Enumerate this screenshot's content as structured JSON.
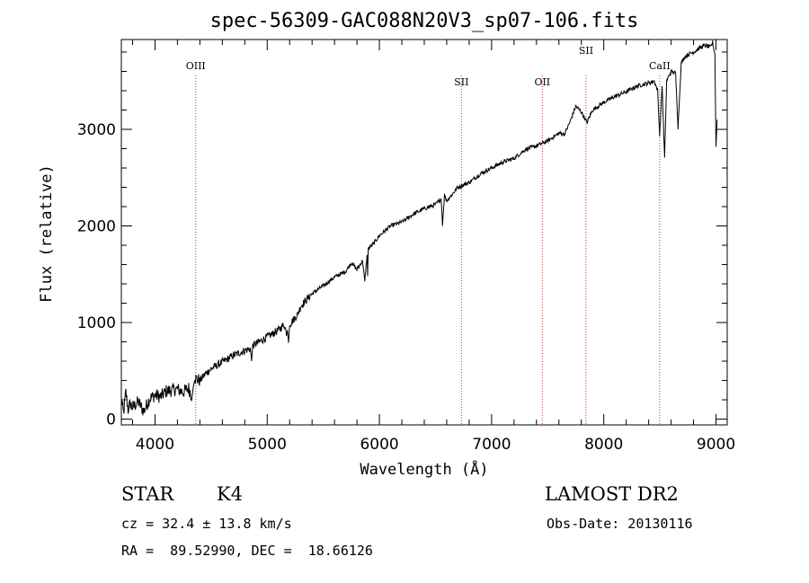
{
  "chart_data": {
    "type": "line",
    "title": "spec-56309-GAC088N20V3_sp07-106.fits",
    "xlabel": "Wavelength (Å)",
    "ylabel": "Flux (relative)",
    "xlim": [
      3700,
      9100
    ],
    "ylim": [
      -60,
      3930
    ],
    "xticks": [
      "4000",
      "5000",
      "6000",
      "7000",
      "8000",
      "9000"
    ],
    "yticks": [
      "0",
      "1000",
      "2000",
      "3000"
    ],
    "grid": false,
    "series": [
      {
        "x": [
          3700,
          3720,
          3740,
          3760,
          3780,
          3800,
          3850,
          3900,
          3950,
          4000,
          4050,
          4100,
          4150,
          4200,
          4250,
          4300,
          4330,
          4345,
          4360,
          4400,
          4450,
          4500,
          4600,
          4700,
          4800,
          4850,
          4861,
          4870,
          4900,
          5000,
          5100,
          5150,
          5175,
          5180,
          5190,
          5200,
          5270,
          5300,
          5400,
          5500,
          5600,
          5700,
          5750,
          5800,
          5850,
          5870,
          5890,
          5895,
          5900,
          5950,
          6000,
          6100,
          6200,
          6300,
          6400,
          6500,
          6550,
          6563,
          6580,
          6600,
          6700,
          6800,
          6900,
          7000,
          7100,
          7200,
          7300,
          7400,
          7500,
          7600,
          7650,
          7700,
          7750,
          7800,
          7850,
          7900,
          7950,
          8000,
          8050,
          8100,
          8200,
          8300,
          8400,
          8450,
          8480,
          8498,
          8520,
          8542,
          8560,
          8600,
          8640,
          8662,
          8690,
          8720,
          8760,
          8800,
          8850,
          8900,
          8950,
          8970,
          8990,
          9000,
          9010
        ],
        "y": [
          200,
          60,
          280,
          100,
          160,
          120,
          180,
          80,
          210,
          250,
          230,
          290,
          300,
          310,
          280,
          320,
          230,
          360,
          420,
          400,
          470,
          520,
          590,
          660,
          710,
          730,
          600,
          760,
          780,
          850,
          920,
          980,
          880,
          920,
          790,
          980,
          1080,
          1170,
          1300,
          1380,
          1470,
          1530,
          1620,
          1550,
          1640,
          1420,
          1700,
          1480,
          1760,
          1820,
          1900,
          2000,
          2040,
          2120,
          2180,
          2220,
          2280,
          2020,
          2320,
          2260,
          2400,
          2450,
          2540,
          2600,
          2660,
          2700,
          2790,
          2830,
          2880,
          2960,
          2950,
          3080,
          3240,
          3180,
          3070,
          3200,
          3240,
          3280,
          3310,
          3340,
          3390,
          3450,
          3480,
          3500,
          3400,
          2940,
          3450,
          2700,
          3500,
          3600,
          3580,
          3020,
          3680,
          3750,
          3780,
          3800,
          3840,
          3870,
          3850,
          3900,
          3780,
          2820,
          3100
        ]
      }
    ],
    "annotations": [
      {
        "label": "OIII",
        "x": 4363
      },
      {
        "label": "SII",
        "x": 6731
      },
      {
        "label": "OII",
        "x": 7452
      },
      {
        "label": "SII",
        "x": 7842
      },
      {
        "label": "CaII",
        "x": 8498
      }
    ],
    "annotation_color": "#c0392b"
  },
  "info": {
    "object_class": "STAR",
    "subclass": "K4",
    "survey": "LAMOST DR2",
    "cz": "cz = 32.4 ± 13.8 km/s",
    "obs_date": "Obs-Date: 20130116",
    "coords": "RA =  89.52990, DEC =  18.66126"
  }
}
